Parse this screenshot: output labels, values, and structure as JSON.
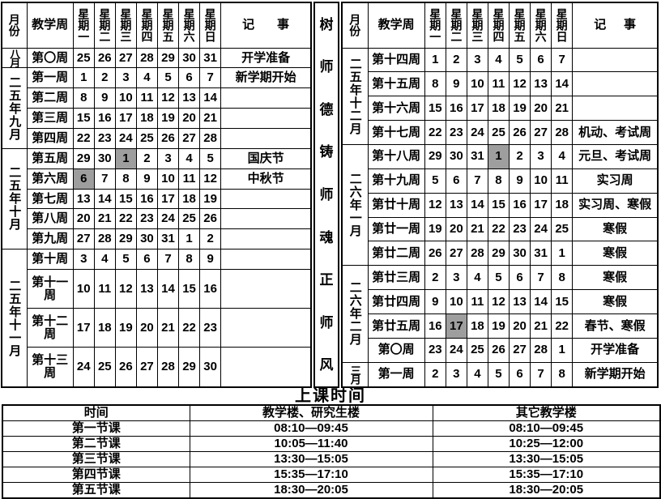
{
  "header": {
    "month": "月份",
    "week": "教学周",
    "days": [
      "星期一",
      "星期二",
      "星期三",
      "星期四",
      "星期五",
      "星期六",
      "星期日"
    ],
    "note_left": "记",
    "note_right": "事"
  },
  "banner": {
    "chars": [
      "树",
      "师",
      "德",
      "铸",
      "师",
      "魂",
      "正",
      "师",
      "风"
    ]
  },
  "left_table": {
    "month_groups": [
      {
        "label": "八月",
        "span": 1
      },
      {
        "label": "二五年九月",
        "span": 4
      },
      {
        "label": "二五年十月",
        "span": 5
      },
      {
        "label": "二五年十一月",
        "span": 4
      }
    ],
    "rows": [
      {
        "week": "第〇周",
        "days": [
          "25",
          "26",
          "27",
          "28",
          "29",
          "30",
          "31"
        ],
        "note": "开学准备"
      },
      {
        "week": "第一周",
        "days": [
          "1",
          "2",
          "3",
          "4",
          "5",
          "6",
          "7"
        ],
        "note": "新学期开始"
      },
      {
        "week": "第二周",
        "days": [
          "8",
          "9",
          "10",
          "11",
          "12",
          "13",
          "14"
        ],
        "note": ""
      },
      {
        "week": "第三周",
        "days": [
          "15",
          "16",
          "17",
          "18",
          "19",
          "20",
          "21"
        ],
        "note": ""
      },
      {
        "week": "第四周",
        "days": [
          "22",
          "23",
          "24",
          "25",
          "26",
          "27",
          "28"
        ],
        "note": ""
      },
      {
        "week": "第五周",
        "days": [
          "29",
          "30",
          "1",
          "2",
          "3",
          "4",
          "5"
        ],
        "hatched": 2,
        "note": "国庆节"
      },
      {
        "week": "第六周",
        "days": [
          "6",
          "7",
          "8",
          "9",
          "10",
          "11",
          "12"
        ],
        "hatched": 0,
        "note": "中秋节"
      },
      {
        "week": "第七周",
        "days": [
          "13",
          "14",
          "15",
          "16",
          "17",
          "18",
          "19"
        ],
        "note": ""
      },
      {
        "week": "第八周",
        "days": [
          "20",
          "21",
          "22",
          "23",
          "24",
          "25",
          "26"
        ],
        "note": ""
      },
      {
        "week": "第九周",
        "days": [
          "27",
          "28",
          "29",
          "30",
          "31",
          "1",
          "2"
        ],
        "note": ""
      },
      {
        "week": "第十周",
        "days": [
          "3",
          "4",
          "5",
          "6",
          "7",
          "8",
          "9"
        ],
        "note": ""
      },
      {
        "week": "第十一周",
        "days": [
          "10",
          "11",
          "12",
          "13",
          "14",
          "15",
          "16"
        ],
        "note": ""
      },
      {
        "week": "第十二周",
        "days": [
          "17",
          "18",
          "19",
          "20",
          "21",
          "22",
          "23"
        ],
        "note": ""
      },
      {
        "week": "第十三周",
        "days": [
          "24",
          "25",
          "26",
          "27",
          "28",
          "29",
          "30"
        ],
        "note": ""
      }
    ]
  },
  "right_table": {
    "month_groups": [
      {
        "label": "二五年十二月",
        "span": 4
      },
      {
        "label": "二六年一月",
        "span": 5
      },
      {
        "label": "二六年二月",
        "span": 4
      },
      {
        "label": "三月",
        "span": 1
      }
    ],
    "rows": [
      {
        "week": "第十四周",
        "days": [
          "1",
          "2",
          "3",
          "4",
          "5",
          "6",
          "7"
        ],
        "note": ""
      },
      {
        "week": "第十五周",
        "days": [
          "8",
          "9",
          "10",
          "11",
          "12",
          "13",
          "14"
        ],
        "note": ""
      },
      {
        "week": "第十六周",
        "days": [
          "15",
          "16",
          "17",
          "18",
          "19",
          "20",
          "21"
        ],
        "note": ""
      },
      {
        "week": "第十七周",
        "days": [
          "22",
          "23",
          "24",
          "25",
          "26",
          "27",
          "28"
        ],
        "note": "机动、考试周"
      },
      {
        "week": "第十八周",
        "days": [
          "29",
          "30",
          "31",
          "1",
          "2",
          "3",
          "4"
        ],
        "hatched": 3,
        "note": "元旦、考试周"
      },
      {
        "week": "第十九周",
        "days": [
          "5",
          "6",
          "7",
          "8",
          "9",
          "10",
          "11"
        ],
        "note": "实习周"
      },
      {
        "week": "第廿十周",
        "days": [
          "12",
          "13",
          "14",
          "15",
          "16",
          "17",
          "18"
        ],
        "note": "实习周、寒假"
      },
      {
        "week": "第廿一周",
        "days": [
          "19",
          "20",
          "21",
          "22",
          "23",
          "24",
          "25"
        ],
        "note": "寒假"
      },
      {
        "week": "第廿二周",
        "days": [
          "26",
          "27",
          "28",
          "29",
          "30",
          "31",
          "1"
        ],
        "note": "寒假"
      },
      {
        "week": "第廿三周",
        "days": [
          "2",
          "3",
          "4",
          "5",
          "6",
          "7",
          "8"
        ],
        "note": "寒假"
      },
      {
        "week": "第廿四周",
        "days": [
          "9",
          "10",
          "11",
          "12",
          "13",
          "14",
          "15"
        ],
        "note": "寒假"
      },
      {
        "week": "第廿五周",
        "days": [
          "16",
          "17",
          "18",
          "19",
          "20",
          "21",
          "22"
        ],
        "hatched": 1,
        "note": "春节、寒假"
      },
      {
        "week": "第〇周",
        "days": [
          "23",
          "24",
          "25",
          "26",
          "27",
          "28",
          "1"
        ],
        "note": "开学准备"
      },
      {
        "week": "第一周",
        "days": [
          "2",
          "3",
          "4",
          "5",
          "6",
          "7",
          "8"
        ],
        "note": "新学期开始"
      }
    ]
  },
  "class_times": {
    "title": "上课时间",
    "headers": [
      "时间",
      "教学楼、研究生楼",
      "其它教学楼"
    ],
    "rows": [
      [
        "第一节课",
        "08:10—09:45",
        "08:10—09:45"
      ],
      [
        "第二节课",
        "10:05—11:40",
        "10:25—12:00"
      ],
      [
        "第三节课",
        "13:30—15:05",
        "13:30—15:05"
      ],
      [
        "第四节课",
        "15:35—17:10",
        "15:35—17:10"
      ],
      [
        "第五节课",
        "18:30—20:05",
        "18:30—20:05"
      ]
    ]
  }
}
